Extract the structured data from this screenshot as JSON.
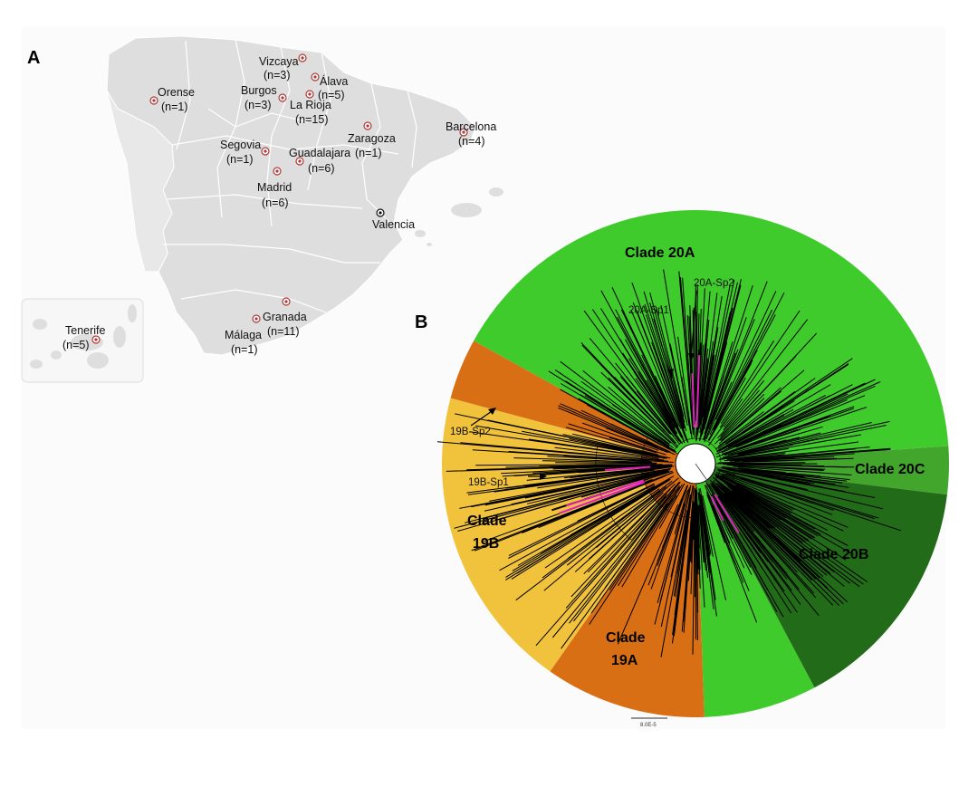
{
  "figure": {
    "panel_a_label": "A",
    "panel_b_label": "B"
  },
  "map": {
    "inset_label": "Tenerife",
    "locations": [
      {
        "id": "vizcaya",
        "name": "Vizcaya",
        "count": "(n=3)"
      },
      {
        "id": "alava",
        "name": "Álava",
        "count": "(n=5)"
      },
      {
        "id": "orense",
        "name": "Orense",
        "count": "(n=1)"
      },
      {
        "id": "burgos",
        "name": "Burgos",
        "count": "(n=3)"
      },
      {
        "id": "larioja",
        "name": "La Rioja",
        "count": "(n=15)"
      },
      {
        "id": "barcelona",
        "name": "Barcelona",
        "count": "(n=4)"
      },
      {
        "id": "zaragoza",
        "name": "Zaragoza",
        "count": "(n=1)"
      },
      {
        "id": "segovia",
        "name": "Segovia",
        "count": "(n=1)"
      },
      {
        "id": "guadalajara",
        "name": "Guadalajara",
        "count": "(n=6)"
      },
      {
        "id": "madrid",
        "name": "Madrid",
        "count": "(n=6)"
      },
      {
        "id": "valencia",
        "name": "Valencia",
        "count": ""
      },
      {
        "id": "granada",
        "name": "Granada",
        "count": "(n=11)"
      },
      {
        "id": "malaga",
        "name": "Málaga",
        "count": "(n=1)"
      },
      {
        "id": "tenerife",
        "name": "Tenerife",
        "count": "(n=5)"
      }
    ],
    "colors": {
      "land": "#dedede",
      "border": "#ffffff",
      "sampled_marker": "#b03a3a",
      "reference_marker": "#111111"
    }
  },
  "tree": {
    "clades": [
      {
        "id": "c20a",
        "label": "Clade 20A",
        "color": "#3fcb2b"
      },
      {
        "id": "c20c",
        "label": "Clade 20C",
        "color": "#43a62c"
      },
      {
        "id": "c20b",
        "label": "Clade 20B",
        "color": "#226b18"
      },
      {
        "id": "c19a",
        "label_line1": "Clade",
        "label_line2": "19A",
        "color": "#d96f14"
      },
      {
        "id": "c19b",
        "label_line1": "Clade",
        "label_line2": "19B",
        "color": "#f1c23c"
      }
    ],
    "subclades": [
      {
        "id": "s20a2",
        "label": "20A-Sp2"
      },
      {
        "id": "s20a1",
        "label": "20A-Sp1"
      },
      {
        "id": "s19b2",
        "label": "19B-Sp2"
      },
      {
        "id": "s19b1",
        "label": "19B-Sp1"
      }
    ],
    "highlight_color": "#e020c0",
    "branch_color": "#000000",
    "scale_bar_label": "8.0E-5"
  }
}
